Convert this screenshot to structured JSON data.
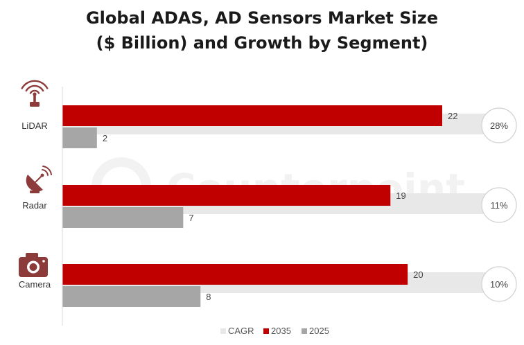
{
  "chart_data": {
    "type": "bar",
    "orientation": "horizontal",
    "title_lines": [
      "Global ADAS, AD Sensors Market Size",
      "($ Billion) and Growth by Segment)"
    ],
    "categories": [
      "LiDAR",
      "Radar",
      "Camera"
    ],
    "category_icons": [
      "lidar-icon",
      "radar-icon",
      "camera-icon"
    ],
    "series": [
      {
        "name": "2035",
        "values": [
          22,
          19,
          20
        ],
        "color": "#c00000"
      },
      {
        "name": "2025",
        "values": [
          2,
          7,
          8
        ],
        "color": "#a6a6a6"
      }
    ],
    "cagr": {
      "name": "CAGR",
      "labels": [
        "28%",
        "11%",
        "10%"
      ],
      "color": "#e8e8e8"
    },
    "legend": {
      "position": "bottom",
      "items": [
        "CAGR",
        "2035",
        "2025"
      ]
    },
    "xlim": [
      0,
      25
    ],
    "grid": false,
    "watermark": "Counterpoint",
    "icon_color": "#8c3a3a"
  }
}
